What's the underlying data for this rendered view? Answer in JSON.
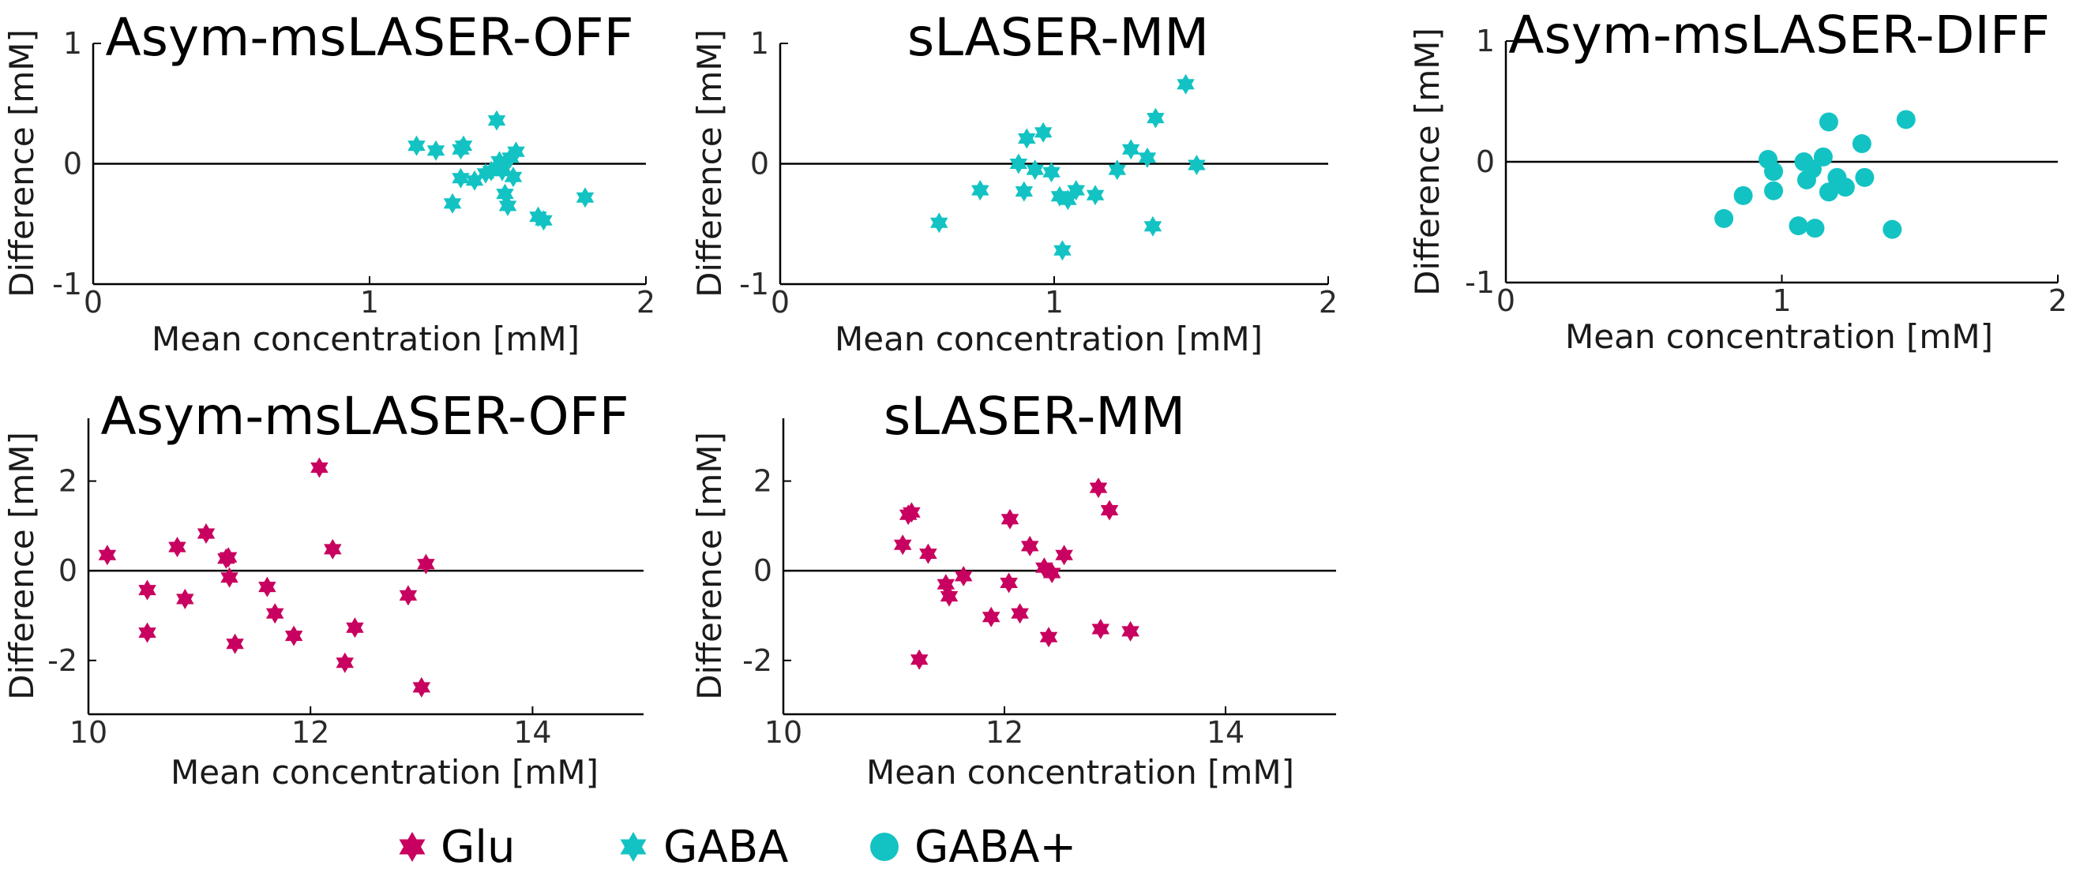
{
  "colors": {
    "glu": "#c8005f",
    "gaba": "#13c3c3",
    "axis": "#000000",
    "tick_text": "#2b2b2b"
  },
  "legend": [
    {
      "label": "Glu",
      "marker": "hexagram",
      "color": "#c8005f"
    },
    {
      "label": "GABA",
      "marker": "hexagram",
      "color": "#13c3c3"
    },
    {
      "label": "GABA+",
      "marker": "circle",
      "color": "#13c3c3"
    }
  ],
  "chart_data": [
    {
      "type": "scatter",
      "title": "Asym-msLASER-OFF",
      "xlabel": "Mean concentration [mM]",
      "ylabel": "Difference [mM]",
      "xlim": [
        0,
        2
      ],
      "ylim": [
        -1,
        1
      ],
      "xticks": [
        "0",
        "1",
        "2"
      ],
      "yticks": [
        "-1",
        "0",
        "1"
      ],
      "zero_line": true,
      "grid": false,
      "series": [
        {
          "marker": "hexagram",
          "color": "#13c3c3",
          "x": [
            1.17,
            1.24,
            1.3,
            1.33,
            1.33,
            1.34,
            1.38,
            1.42,
            1.44,
            1.46,
            1.47,
            1.48,
            1.48,
            1.49,
            1.5,
            1.51,
            1.52,
            1.53,
            1.61,
            1.63,
            1.78
          ],
          "y": [
            0.15,
            0.11,
            -0.33,
            -0.12,
            0.12,
            0.15,
            -0.14,
            -0.08,
            -0.06,
            0.36,
            0.02,
            -0.03,
            -0.06,
            -0.25,
            -0.35,
            0.05,
            -0.11,
            0.1,
            -0.44,
            -0.47,
            -0.28
          ]
        }
      ]
    },
    {
      "type": "scatter",
      "title": "sLASER-MM",
      "xlabel": "Mean concentration [mM]",
      "ylabel": "Difference [mM]",
      "xlim": [
        0,
        2
      ],
      "ylim": [
        -1,
        1
      ],
      "xticks": [
        "0",
        "1",
        "2"
      ],
      "yticks": [
        "-1",
        "0",
        "1"
      ],
      "zero_line": true,
      "grid": false,
      "series": [
        {
          "marker": "hexagram",
          "color": "#13c3c3",
          "x": [
            0.58,
            0.73,
            0.87,
            0.89,
            0.9,
            0.93,
            0.96,
            0.99,
            1.02,
            1.03,
            1.05,
            1.08,
            1.15,
            1.23,
            1.28,
            1.34,
            1.36,
            1.37,
            1.48,
            1.52
          ],
          "y": [
            -0.49,
            -0.22,
            0.0,
            -0.23,
            0.21,
            -0.05,
            0.26,
            -0.07,
            -0.27,
            -0.72,
            -0.3,
            -0.22,
            -0.26,
            -0.05,
            0.12,
            0.05,
            -0.52,
            0.38,
            0.66,
            -0.01
          ]
        }
      ]
    },
    {
      "type": "scatter",
      "title": "Asym-msLASER-DIFF",
      "xlabel": "Mean concentration [mM]",
      "ylabel": "Difference [mM]",
      "xlim": [
        0,
        2
      ],
      "ylim": [
        -1,
        1
      ],
      "xticks": [
        "0",
        "1",
        "2"
      ],
      "yticks": [
        "-1",
        "0",
        "1"
      ],
      "zero_line": true,
      "grid": false,
      "series": [
        {
          "marker": "circle",
          "color": "#13c3c3",
          "x": [
            0.79,
            0.86,
            0.95,
            0.97,
            0.97,
            1.06,
            1.08,
            1.09,
            1.11,
            1.12,
            1.15,
            1.17,
            1.17,
            1.2,
            1.23,
            1.29,
            1.3,
            1.4,
            1.45
          ],
          "y": [
            -0.47,
            -0.28,
            0.02,
            -0.08,
            -0.24,
            -0.53,
            0.0,
            -0.15,
            -0.06,
            -0.55,
            0.04,
            0.33,
            -0.25,
            -0.13,
            -0.21,
            0.15,
            -0.13,
            -0.56,
            0.35
          ]
        }
      ]
    },
    {
      "type": "scatter",
      "title": "Asym-msLASER-OFF",
      "xlabel": "Mean concentration [mM]",
      "ylabel": "Difference [mM]",
      "xlim": [
        10,
        15
      ],
      "ylim": [
        -3.2,
        3.4
      ],
      "xticks": [
        "10",
        "12",
        "14"
      ],
      "yticks": [
        "-2",
        "0",
        "2"
      ],
      "zero_line": true,
      "grid": false,
      "series": [
        {
          "marker": "hexagram",
          "color": "#c8005f",
          "x": [
            10.17,
            10.53,
            10.53,
            10.8,
            10.87,
            11.06,
            11.24,
            11.26,
            11.27,
            11.32,
            11.61,
            11.68,
            11.85,
            12.08,
            12.2,
            12.31,
            12.4,
            12.88,
            13.0,
            13.04
          ],
          "y": [
            0.35,
            -0.43,
            -1.38,
            0.53,
            -0.63,
            0.83,
            0.27,
            0.3,
            -0.15,
            -1.63,
            -0.36,
            -0.95,
            -1.45,
            2.3,
            0.48,
            -2.05,
            -1.27,
            -0.55,
            -2.6,
            0.15
          ]
        }
      ]
    },
    {
      "type": "scatter",
      "title": "sLASER-MM",
      "xlabel": "Mean concentration [mM]",
      "ylabel": "Difference [mM]",
      "xlim": [
        10,
        15
      ],
      "ylim": [
        -3.2,
        3.4
      ],
      "xticks": [
        "10",
        "12",
        "14"
      ],
      "yticks": [
        "-2",
        "0",
        "2"
      ],
      "zero_line": true,
      "grid": false,
      "series": [
        {
          "marker": "hexagram",
          "color": "#c8005f",
          "x": [
            11.08,
            11.13,
            11.16,
            11.23,
            11.31,
            11.47,
            11.5,
            11.63,
            11.88,
            12.04,
            12.05,
            12.14,
            12.23,
            12.36,
            12.4,
            12.43,
            12.54,
            12.85,
            12.87,
            12.95,
            13.14
          ],
          "y": [
            0.58,
            1.25,
            1.3,
            -1.98,
            0.38,
            -0.3,
            -0.57,
            -0.12,
            -1.03,
            -0.27,
            1.15,
            -0.95,
            0.55,
            0.07,
            -1.48,
            -0.05,
            0.35,
            1.85,
            -1.3,
            1.35,
            -1.35
          ]
        }
      ]
    }
  ]
}
